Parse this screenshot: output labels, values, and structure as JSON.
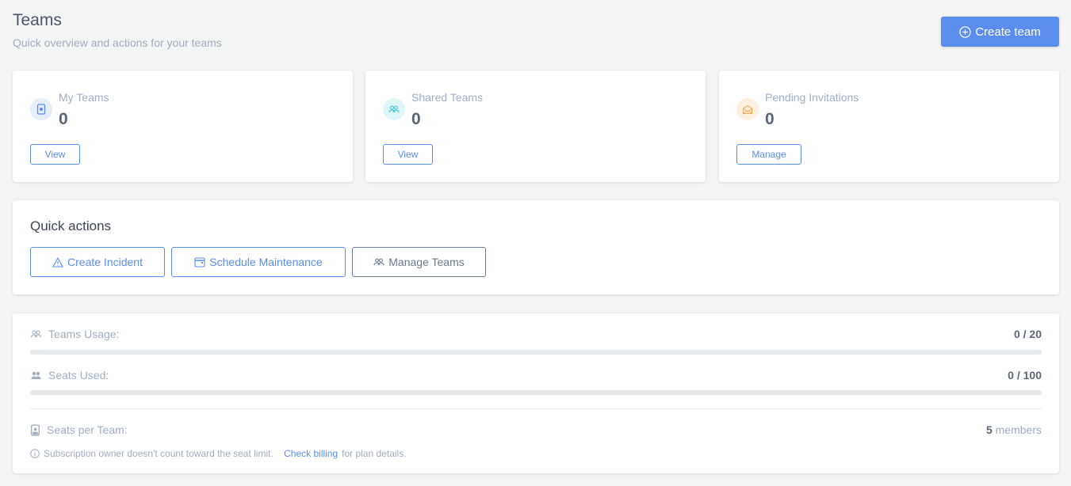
{
  "header": {
    "title": "Teams",
    "subtitle": "Quick overview and actions for your teams",
    "create_label": "Create team"
  },
  "stats": [
    {
      "label": "My Teams",
      "value": "0",
      "button": "View",
      "icon": "badge-icon",
      "color": "#5b8def",
      "bg": "#e6edfb"
    },
    {
      "label": "Shared Teams",
      "value": "0",
      "button": "View",
      "icon": "users-icon",
      "color": "#3fc4d8",
      "bg": "#dff6f9"
    },
    {
      "label": "Pending Invitations",
      "value": "0",
      "button": "Manage",
      "icon": "envelope-open-icon",
      "color": "#f6ad55",
      "bg": "#fdf0e0"
    }
  ],
  "quick_actions": {
    "title": "Quick actions",
    "buttons": [
      "Create Incident",
      "Schedule Maintenance",
      "Manage Teams"
    ]
  },
  "usage": {
    "teams_label": "Teams Usage:",
    "teams_value": "0 / 20",
    "teams_fraction": 0,
    "seats_label": "Seats Used:",
    "seats_value": "0 / 100",
    "seats_fraction": 0,
    "per_team_label": "Seats per Team:",
    "per_team_count": "5",
    "per_team_unit": "members",
    "note_before": "Subscription owner doesn't count toward the seat limit.",
    "note_link": "Check billing",
    "note_after": "for plan details."
  }
}
